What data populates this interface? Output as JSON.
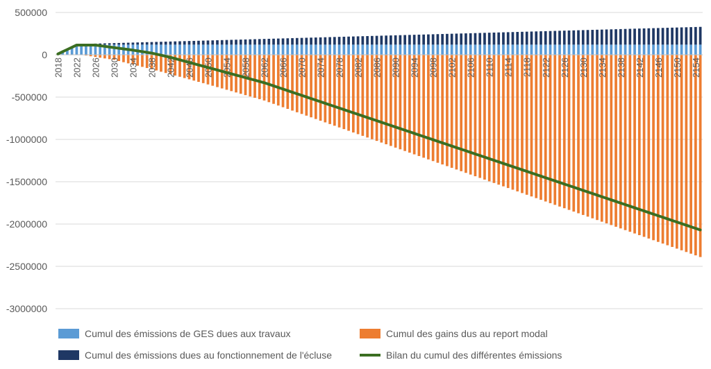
{
  "chart_data": {
    "type": "bar",
    "years": {
      "start": 2018,
      "end": 2155
    },
    "ylim": [
      -3000000,
      500000
    ],
    "yticks": [
      500000,
      0,
      -500000,
      -1000000,
      -1500000,
      -2000000,
      -2500000,
      -3000000
    ],
    "ytick_labels": [
      "500000",
      "0",
      "-500000",
      "-1000000",
      "-1500000",
      "-2000000",
      "-2500000",
      "-3000000"
    ],
    "xtick_labels": [
      "2018",
      "2022",
      "2026",
      "2030",
      "2034",
      "2038",
      "2042",
      "2046",
      "2050",
      "2054",
      "2058",
      "2062",
      "2066",
      "2070",
      "2074",
      "2078",
      "2082",
      "2086",
      "2090",
      "2094",
      "2098",
      "2102",
      "2106",
      "2110",
      "2114",
      "2118",
      "2122",
      "2126",
      "2130",
      "2134",
      "2138",
      "2142",
      "2146",
      "2150",
      "2154"
    ],
    "grid": true,
    "legend_position": "bottom",
    "series": [
      {
        "name": "Cumul des émissions de GES dues aux travaux",
        "kind": "stacked-bar",
        "color": "#5B9BD5",
        "values_linear": [
          [
            2018,
            10000
          ],
          [
            2023,
            120000
          ],
          [
            2155,
            120000
          ]
        ]
      },
      {
        "name": "Cumul des émissions dues au fonctionnement de l'écluse",
        "kind": "stacked-bar",
        "color": "#1F3864",
        "values_linear": [
          [
            2018,
            0
          ],
          [
            2155,
            210000
          ]
        ]
      },
      {
        "name": "Cumul des gains dus au report modal",
        "kind": "bar",
        "color": "#ED7D31",
        "values_linear": [
          [
            2018,
            0
          ],
          [
            2023,
            0
          ],
          [
            2030,
            -60000
          ],
          [
            2038,
            -170000
          ],
          [
            2050,
            -350000
          ],
          [
            2062,
            -540000
          ],
          [
            2155,
            -2390000
          ]
        ]
      },
      {
        "name": "Bilan du cumul des différentes émissions",
        "kind": "line",
        "color": "#3B6E22",
        "values_linear": [
          [
            2018,
            10000
          ],
          [
            2022,
            115000
          ],
          [
            2026,
            115000
          ],
          [
            2030,
            85000
          ],
          [
            2034,
            55000
          ],
          [
            2038,
            20000
          ],
          [
            2042,
            -30000
          ],
          [
            2050,
            -150000
          ],
          [
            2062,
            -330000
          ],
          [
            2155,
            -2070000
          ]
        ]
      }
    ]
  }
}
